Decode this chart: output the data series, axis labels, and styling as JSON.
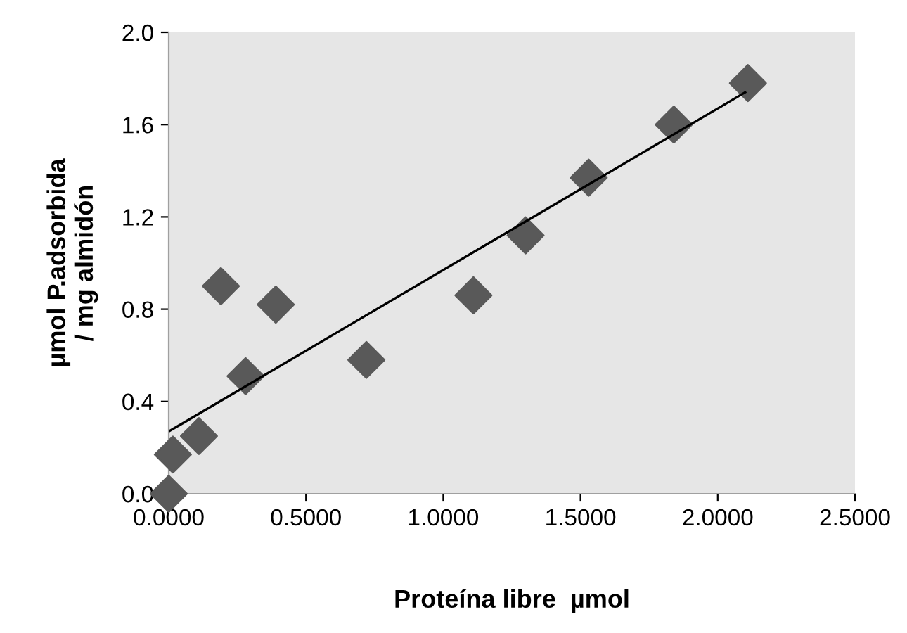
{
  "chart_data": {
    "type": "scatter",
    "xlabel": "Proteína libre  µmol",
    "ylabel": "µmol P.adsorbida\n/ mg almidón",
    "series": [
      {
        "color": "#595959",
        "marker": "diamond",
        "x": [
          0.0,
          0.015,
          0.11,
          0.19,
          0.28,
          0.39,
          0.72,
          1.11,
          1.3,
          1.53,
          1.84,
          2.11
        ],
        "values": [
          0.0,
          0.17,
          0.25,
          0.9,
          0.51,
          0.82,
          0.58,
          0.86,
          1.12,
          1.37,
          1.6,
          1.78
        ]
      },
      {
        "type": "line",
        "color": "#000000",
        "x": [
          0.0,
          2.1
        ],
        "values": [
          0.27,
          1.74
        ]
      }
    ],
    "xlim": [
      0,
      2.5
    ],
    "xticks": [
      {
        "value": 0,
        "label": "0.0000"
      },
      {
        "value": 0.5,
        "label": "0.5000"
      },
      {
        "value": 1.0,
        "label": "1.0000"
      },
      {
        "value": 1.5,
        "label": "1.5000"
      },
      {
        "value": 2.0,
        "label": "2.0000"
      },
      {
        "value": 2.5,
        "label": "2.5000"
      }
    ],
    "ylim": [
      0,
      2.0
    ],
    "yticks": [
      {
        "value": 0,
        "label": "0.0"
      },
      {
        "value": 0.4,
        "label": "0.4"
      },
      {
        "value": 0.8,
        "label": "0.8"
      },
      {
        "value": 1.2,
        "label": "1.2"
      },
      {
        "value": 1.6,
        "label": "1.6"
      },
      {
        "value": 2.0,
        "label": "2.0"
      }
    ],
    "grid": false
  }
}
